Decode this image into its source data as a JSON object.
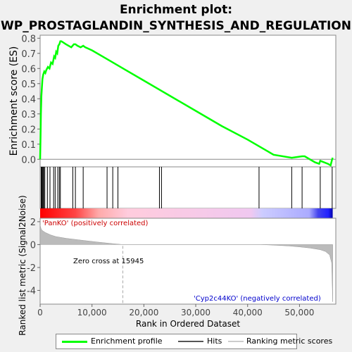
{
  "chart_data": {
    "type": "line",
    "title": "Enrichment plot:\nWP_PROSTAGLANDIN_SYNTHESIS_AND_REGULATION",
    "title_lines": [
      "Enrichment plot:",
      "WP_PROSTAGLANDIN_SYNTHESIS_AND_REGULATION"
    ],
    "es_panel": {
      "ylabel": "Enrichment score (ES)",
      "ylim": [
        -0.05,
        0.82
      ],
      "yticks": [
        0.0,
        0.1,
        0.2,
        0.3,
        0.4,
        0.5,
        0.6,
        0.7,
        0.8
      ],
      "ytick_labels": [
        "0.0",
        "0.1",
        "0.2",
        "0.3",
        "0.4",
        "0.5",
        "0.6",
        "0.7",
        "0.8"
      ],
      "series": [
        {
          "name": "Enrichment profile",
          "color": "#00ff00",
          "x": [
            0,
            80,
            150,
            250,
            350,
            450,
            600,
            800,
            1000,
            1200,
            1500,
            1800,
            2100,
            2400,
            2700,
            2900,
            3100,
            3300,
            3500,
            3700,
            3900,
            4100,
            5000,
            6000,
            6500,
            6800,
            7200,
            7800,
            8300,
            8700,
            10000,
            12000,
            14000,
            16000,
            20000,
            25000,
            30000,
            35000,
            40000,
            45000,
            48500,
            50500,
            51000,
            53000,
            53800,
            54000,
            55500,
            56000,
            56300,
            56400
          ],
          "y": [
            0.0,
            0.15,
            0.3,
            0.42,
            0.48,
            0.53,
            0.56,
            0.58,
            0.57,
            0.59,
            0.61,
            0.6,
            0.64,
            0.63,
            0.68,
            0.67,
            0.71,
            0.7,
            0.75,
            0.76,
            0.78,
            0.78,
            0.76,
            0.74,
            0.76,
            0.76,
            0.75,
            0.74,
            0.75,
            0.74,
            0.72,
            0.68,
            0.64,
            0.6,
            0.52,
            0.42,
            0.32,
            0.22,
            0.13,
            0.03,
            0.01,
            0.02,
            0.02,
            -0.02,
            -0.03,
            -0.01,
            -0.03,
            -0.04,
            0.0,
            0.01
          ]
        }
      ]
    },
    "hits": [
      200,
      350,
      500,
      600,
      700,
      900,
      1400,
      1900,
      2600,
      2900,
      3400,
      3700,
      3900,
      6300,
      6800,
      8300,
      12900,
      14000,
      15000,
      23000,
      23400,
      42200,
      48500,
      50500,
      54000,
      56300
    ],
    "ranking_panel": {
      "ylabel": "Ranked list metric (Signal2Noise)",
      "ylim": [
        -5.2,
        2.3
      ],
      "yticks": [
        -4,
        -2,
        0,
        2
      ],
      "ytick_labels": [
        "-4",
        "-2",
        "0",
        "2"
      ],
      "xlabel": "Rank in Ordered Dataset",
      "xlim": [
        0,
        57000
      ],
      "xticks": [
        0,
        10000,
        20000,
        30000,
        40000,
        50000
      ],
      "xtick_labels": [
        "0",
        "10,000",
        "20,000",
        "30,000",
        "40,000",
        "50,000"
      ],
      "metric_curve": {
        "x": [
          0,
          200,
          500,
          1000,
          2000,
          3000,
          5000,
          8000,
          11000,
          14000,
          15945,
          42500,
          45000,
          48000,
          50000,
          52000,
          54000,
          55000,
          55800,
          56200,
          56400
        ],
        "y": [
          1.7,
          1.35,
          1.2,
          1.05,
          0.85,
          0.7,
          0.55,
          0.38,
          0.22,
          0.08,
          0.0,
          0.0,
          -0.05,
          -0.12,
          -0.2,
          -0.3,
          -0.45,
          -0.6,
          -0.9,
          -1.6,
          -5.0
        ]
      },
      "zero_cross_label": "Zero cross at 15945",
      "zero_cross_x": 15945,
      "positive_label": "'PanKO' (positively correlated)",
      "negative_label": "'Cyp2c44KO' (negatively correlated)",
      "positive_color": "#cc0000",
      "negative_color": "#0000cc"
    },
    "legend": [
      {
        "label": "Enrichment profile",
        "color": "#00ff00"
      },
      {
        "label": "Hits",
        "color": "#555555"
      },
      {
        "label": "Ranking metric scores",
        "color": "#cccccc"
      }
    ],
    "grid": false
  }
}
